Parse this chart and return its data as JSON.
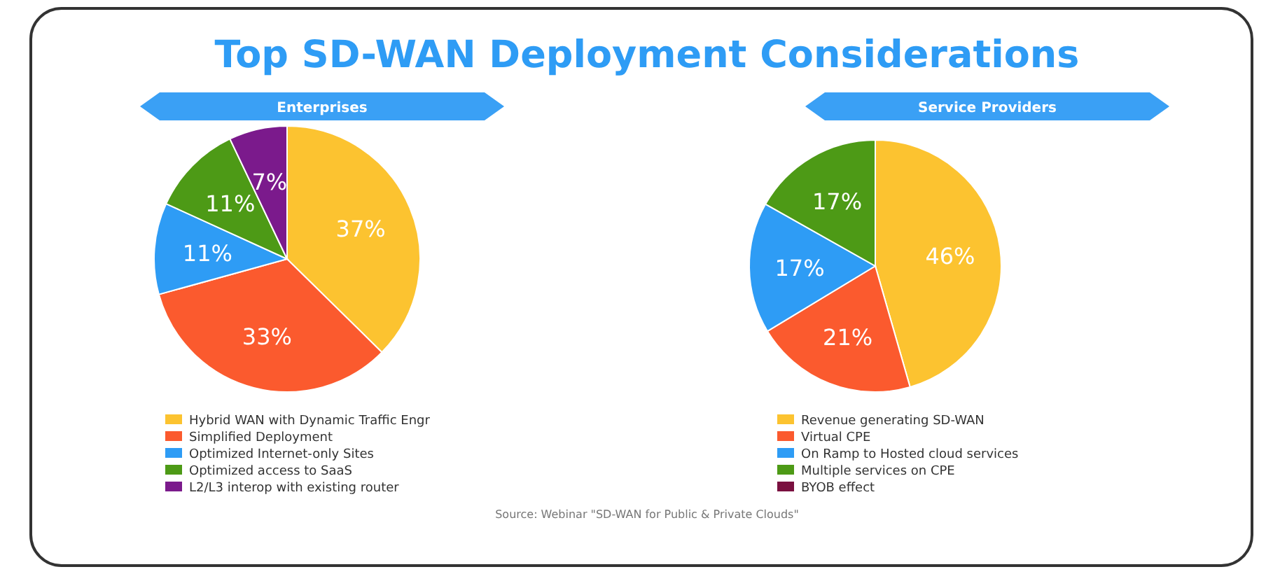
{
  "chart_data": [
    {
      "type": "pie",
      "title": "Top SD-WAN Deployment Considerations",
      "subtitle": "Enterprises",
      "categories": [
        "Hybrid WAN with Dynamic Traffic Engr",
        "Simplified Deployment",
        "Optimized Internet-only Sites",
        "Optimized access to SaaS",
        "L2/L3 interop with existing router"
      ],
      "values": [
        37,
        33,
        11,
        11,
        7
      ],
      "value_labels": [
        "37%",
        "33%",
        "11%",
        "11%",
        "7%"
      ],
      "colors": [
        "#fcc330",
        "#fb5a2e",
        "#2e9cf5",
        "#4d9a16",
        "#7b1a8c"
      ],
      "legend": "bottom",
      "annotations": [
        "Source: Webinar \"SD-WAN for Public & Private Clouds\""
      ]
    },
    {
      "type": "pie",
      "subtitle": "Service Providers",
      "categories": [
        "Revenue generating SD-WAN",
        "Virtual CPE",
        "On Ramp to Hosted cloud services",
        "Multiple services on CPE",
        "BYOB effect"
      ],
      "values": [
        46,
        21,
        17,
        17,
        0
      ],
      "value_labels": [
        "46%",
        "21%",
        "17%",
        "17%",
        null
      ],
      "colors": [
        "#fcc330",
        "#fb5a2e",
        "#2e9cf5",
        "#4d9a16",
        "#7a1040"
      ],
      "legend": "bottom"
    }
  ]
}
